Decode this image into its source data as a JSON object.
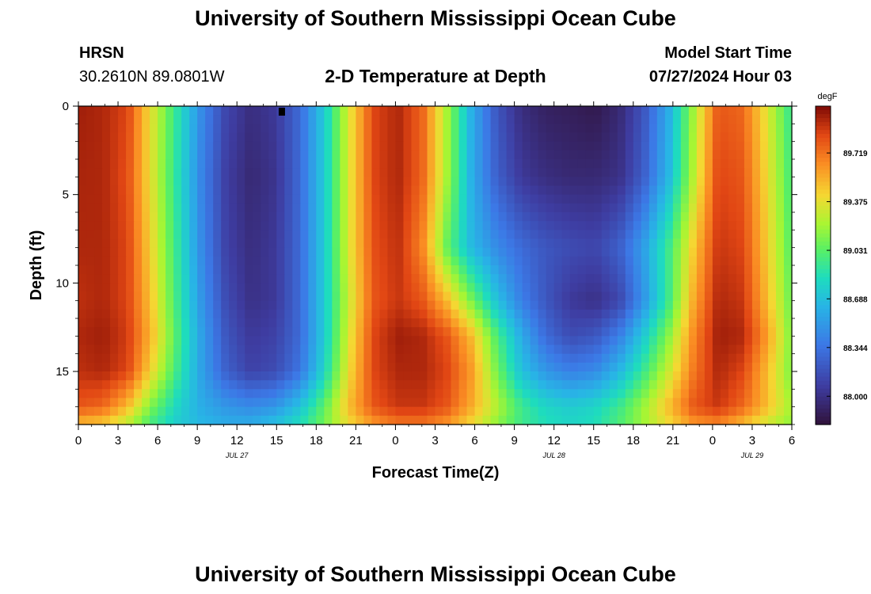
{
  "header": {
    "title": "University of Southern Mississippi Ocean Cube",
    "station": "HRSN",
    "coords": "30.2610N  89.0801W",
    "plot_title": "2-D Temperature at Depth",
    "model_label": "Model Start Time",
    "model_time": "07/27/2024 Hour 03"
  },
  "footer": {
    "title": "University of Southern Mississippi Ocean Cube"
  },
  "chart_data": {
    "type": "heatmap",
    "title": "2-D Temperature at Depth",
    "xlabel": "Forecast Time(Z)",
    "ylabel": "Depth (ft)",
    "x_range": [
      0,
      54
    ],
    "y_range": [
      0,
      18
    ],
    "x_tick_values": [
      0,
      3,
      6,
      9,
      12,
      15,
      18,
      21,
      24,
      27,
      30,
      33,
      36,
      39,
      42,
      45,
      48,
      51,
      54
    ],
    "x_tick_labels": [
      "0",
      "3",
      "6",
      "9",
      "12",
      "15",
      "18",
      "21",
      "0",
      "3",
      "6",
      "9",
      "12",
      "15",
      "18",
      "21",
      "0",
      "3",
      "6"
    ],
    "y_ticks": [
      0,
      5,
      10,
      15
    ],
    "y_tick_labels": [
      "0",
      "5",
      "10",
      "15"
    ],
    "date_labels": [
      {
        "label": "JUL 27",
        "x": 12
      },
      {
        "label": "JUL 28",
        "x": 36
      },
      {
        "label": "JUL 29",
        "x": 51
      }
    ],
    "colorbar": {
      "unit": "degF",
      "range": [
        87.8,
        90.05
      ],
      "ticks": [
        88.0,
        88.344,
        88.688,
        89.031,
        89.375,
        89.719
      ],
      "tick_labels": [
        "88.000",
        "88.344",
        "88.688",
        "89.031",
        "89.375",
        "89.719"
      ]
    },
    "value_rows": [
      {
        "depth": 0,
        "values": [
          89.98,
          89.95,
          89.85,
          89.35,
          88.9,
          88.45,
          88.12,
          87.98,
          88.05,
          88.3,
          88.75,
          89.35,
          89.85,
          89.95,
          89.75,
          89.2,
          88.6,
          88.2,
          87.98,
          87.9,
          87.88,
          87.85,
          87.95,
          88.2,
          88.6,
          89.2,
          89.8,
          89.75,
          89.35,
          88.9
        ]
      },
      {
        "depth": 4,
        "values": [
          89.96,
          89.95,
          89.82,
          89.35,
          88.88,
          88.42,
          88.08,
          87.95,
          88.02,
          88.3,
          88.75,
          89.35,
          89.85,
          89.95,
          89.75,
          89.2,
          88.6,
          88.25,
          88.05,
          87.98,
          87.95,
          87.95,
          88.0,
          88.25,
          88.65,
          89.25,
          89.85,
          89.8,
          89.4,
          88.95
        ]
      },
      {
        "depth": 8,
        "values": [
          89.95,
          89.95,
          89.85,
          89.4,
          88.92,
          88.45,
          88.1,
          87.98,
          88.05,
          88.3,
          88.75,
          89.35,
          89.82,
          89.92,
          89.65,
          89.05,
          88.65,
          88.45,
          88.3,
          88.2,
          88.15,
          88.12,
          88.25,
          88.55,
          88.95,
          89.45,
          89.9,
          89.85,
          89.45,
          89.0
        ]
      },
      {
        "depth": 11,
        "values": [
          89.92,
          89.95,
          89.85,
          89.45,
          88.95,
          88.5,
          88.15,
          88.0,
          88.05,
          88.3,
          88.75,
          89.3,
          89.8,
          89.9,
          89.8,
          89.5,
          89.1,
          88.7,
          88.4,
          88.2,
          88.05,
          88.0,
          88.12,
          88.5,
          88.95,
          89.55,
          89.95,
          89.9,
          89.5,
          89.05
        ]
      },
      {
        "depth": 13,
        "values": [
          89.95,
          89.98,
          89.88,
          89.5,
          89.0,
          88.55,
          88.2,
          88.05,
          88.1,
          88.3,
          88.75,
          89.35,
          89.85,
          89.98,
          89.95,
          89.8,
          89.5,
          89.0,
          88.6,
          88.3,
          88.15,
          88.2,
          88.4,
          88.75,
          89.15,
          89.65,
          89.98,
          89.95,
          89.6,
          89.1
        ]
      },
      {
        "depth": 15,
        "values": [
          89.92,
          89.95,
          89.85,
          89.4,
          88.95,
          88.55,
          88.25,
          88.1,
          88.15,
          88.35,
          88.8,
          89.4,
          89.85,
          89.95,
          89.95,
          89.85,
          89.6,
          89.1,
          88.7,
          88.5,
          88.4,
          88.45,
          88.65,
          88.95,
          89.3,
          89.7,
          89.95,
          89.85,
          89.5,
          89.1
        ]
      },
      {
        "depth": 17,
        "values": [
          89.8,
          89.75,
          89.5,
          89.1,
          88.8,
          88.6,
          88.5,
          88.45,
          88.5,
          88.7,
          89.05,
          89.5,
          89.8,
          89.9,
          89.9,
          89.8,
          89.55,
          89.25,
          88.95,
          88.8,
          88.75,
          88.8,
          88.95,
          89.2,
          89.5,
          89.8,
          89.9,
          89.75,
          89.5,
          89.2
        ]
      },
      {
        "depth": 18,
        "values": [
          89.5,
          89.45,
          89.25,
          88.95,
          88.75,
          88.65,
          88.6,
          88.6,
          88.7,
          88.85,
          89.1,
          89.4,
          89.6,
          89.7,
          89.7,
          89.6,
          89.4,
          89.15,
          88.95,
          88.85,
          88.8,
          88.85,
          89.0,
          89.2,
          89.4,
          89.6,
          89.65,
          89.5,
          89.3,
          89.15
        ]
      }
    ],
    "marker": {
      "x": 15.4,
      "depth": 0.3
    }
  }
}
